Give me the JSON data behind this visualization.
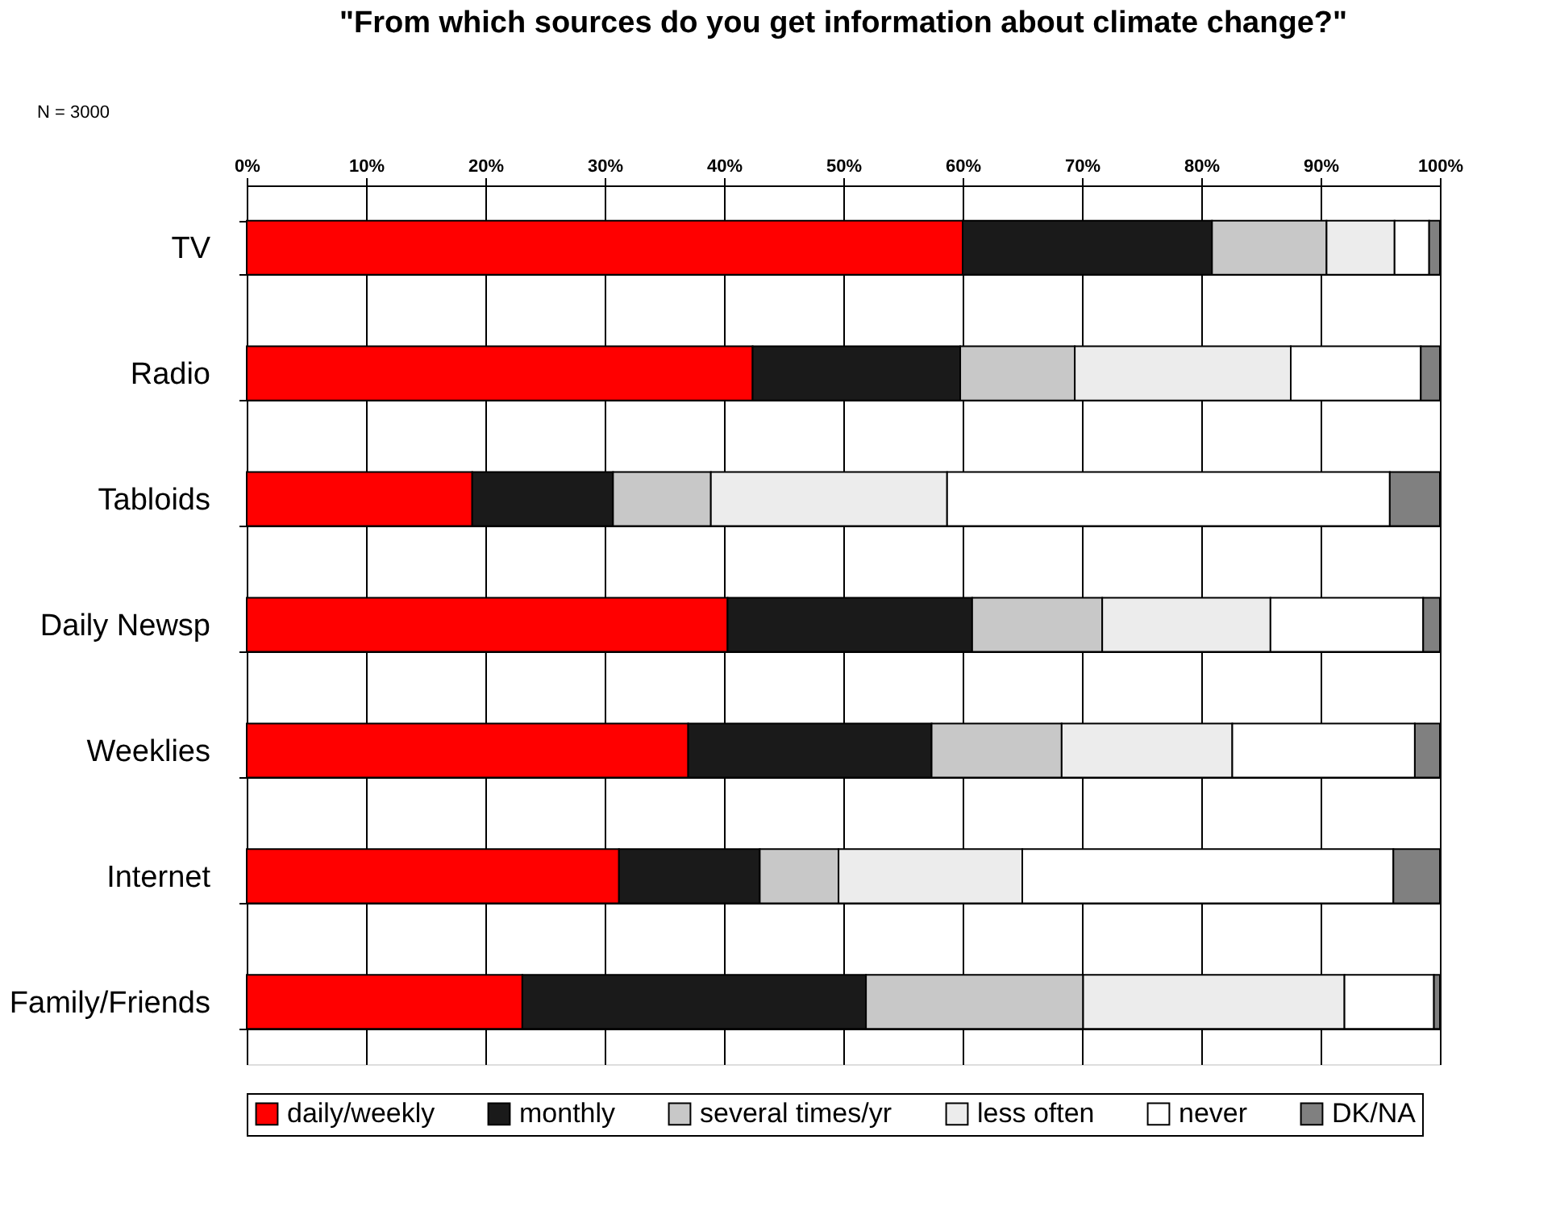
{
  "chart_data": {
    "type": "bar",
    "orientation": "horizontal",
    "stacked": true,
    "title": "\"From which sources do you get information about climate change?\"",
    "annotations": [
      "N = 3000"
    ],
    "categories": [
      "TV",
      "Radio",
      "Tabloids",
      "Daily Newsp",
      "Weeklies",
      "Internet",
      "Family/Friends"
    ],
    "series": [
      {
        "name": "daily/weekly",
        "color": "#ff0000",
        "values": [
          60.0,
          42.4,
          18.9,
          40.3,
          37.0,
          31.2,
          23.1
        ]
      },
      {
        "name": "monthly",
        "color": "#1a1a1a",
        "values": [
          20.9,
          17.4,
          11.8,
          20.5,
          20.4,
          11.8,
          28.8
        ]
      },
      {
        "name": "several times/yr",
        "color": "#c8c8c8",
        "values": [
          9.6,
          9.6,
          8.2,
          10.9,
          10.9,
          6.6,
          18.2
        ]
      },
      {
        "name": "less often",
        "color": "#ececec",
        "values": [
          5.7,
          18.1,
          19.8,
          14.1,
          14.3,
          15.4,
          21.9
        ]
      },
      {
        "name": "never",
        "color": "#ffffff",
        "values": [
          2.9,
          10.9,
          37.1,
          12.8,
          15.3,
          31.1,
          7.5
        ]
      },
      {
        "name": "DK/NA",
        "color": "#808080",
        "values": [
          0.9,
          1.6,
          4.2,
          1.4,
          2.1,
          3.9,
          0.5
        ]
      }
    ],
    "xlim": [
      0,
      100
    ],
    "xticks": [
      {
        "value": 0,
        "label": "0%"
      },
      {
        "value": 10,
        "label": "10%"
      },
      {
        "value": 20,
        "label": "20%"
      },
      {
        "value": 30,
        "label": "30%"
      },
      {
        "value": 40,
        "label": "40%"
      },
      {
        "value": 50,
        "label": "50%"
      },
      {
        "value": 60,
        "label": "60%"
      },
      {
        "value": 70,
        "label": "70%"
      },
      {
        "value": 80,
        "label": "80%"
      },
      {
        "value": 90,
        "label": "90%"
      },
      {
        "value": 100,
        "label": "100%"
      }
    ],
    "grid": true,
    "legend": "bottom"
  }
}
